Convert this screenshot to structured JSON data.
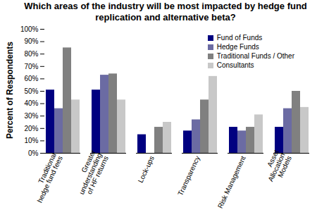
{
  "chart_data": {
    "type": "bar",
    "title": "Which areas of the industry will be most impacted by hedge fund replication and alternative beta?",
    "y_label": "Percent of Respondents",
    "categories": [
      "Traditional hedge fund fees",
      "Greater understanding of HF returns",
      "Lock-ups",
      "Transparency",
      "Risk Management",
      "Asset Allocation Models"
    ],
    "series": [
      {
        "name": "Fund of Funds",
        "color": "#000080",
        "values": [
          51,
          51,
          15,
          18,
          21,
          21
        ]
      },
      {
        "name": "Hedge Funds",
        "color": "#6b6ba3",
        "values": [
          36,
          63,
          0,
          27,
          18,
          36
        ]
      },
      {
        "name": "Traditional Funds / Other",
        "color": "#808080",
        "values": [
          85,
          64,
          21,
          43,
          21,
          50
        ]
      },
      {
        "name": "Consultants",
        "color": "#c8c8c8",
        "values": [
          43,
          43,
          25,
          62,
          31,
          37
        ]
      }
    ],
    "ylim": [
      0,
      100
    ],
    "yticks": [
      {
        "value": 0,
        "label": "0%"
      },
      {
        "value": 10,
        "label": "10%"
      },
      {
        "value": 20,
        "label": "20%"
      },
      {
        "value": 30,
        "label": "30%"
      },
      {
        "value": 40,
        "label": "40%"
      },
      {
        "value": 50,
        "label": "50%"
      },
      {
        "value": 60,
        "label": "60%"
      },
      {
        "value": 70,
        "label": "70%"
      },
      {
        "value": 80,
        "label": "80%"
      },
      {
        "value": 90,
        "label": "90%"
      },
      {
        "value": 100,
        "label": "100%"
      }
    ],
    "grid": false,
    "legend": "top-right"
  }
}
